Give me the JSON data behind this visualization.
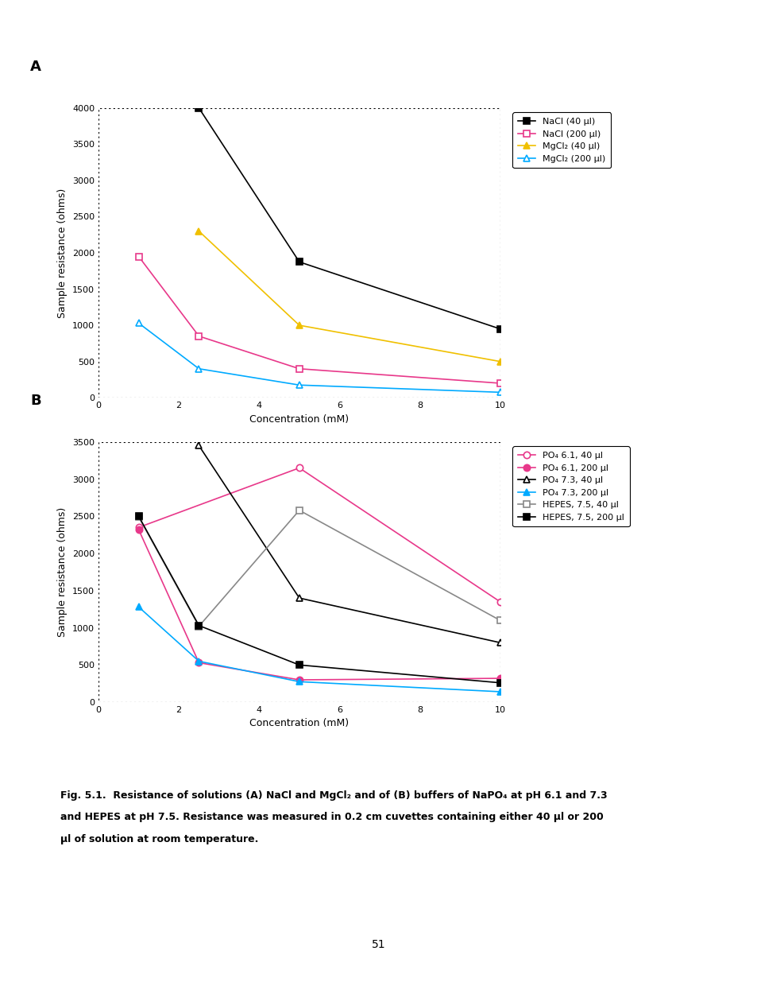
{
  "chart_A": {
    "title": "A",
    "xlabel": "Concentration (mM)",
    "ylabel": "Sample resistance (ohms)",
    "xlim": [
      0,
      10
    ],
    "ylim": [
      0,
      4000
    ],
    "yticks": [
      0,
      500,
      1000,
      1500,
      2000,
      2500,
      3000,
      3500,
      4000
    ],
    "xticks": [
      0,
      2,
      4,
      6,
      8,
      10
    ],
    "series": [
      {
        "label": "NaCl (40 µl)",
        "x": [
          2.5,
          5,
          10
        ],
        "y": [
          4000,
          1875,
          950
        ],
        "color": "#000000",
        "marker": "s",
        "fillstyle": "full",
        "linestyle": "-"
      },
      {
        "label": "NaCl (200 µl)",
        "x": [
          1,
          2.5,
          5,
          10
        ],
        "y": [
          1950,
          850,
          400,
          200
        ],
        "color": "#e8388a",
        "marker": "s",
        "fillstyle": "none",
        "linestyle": "-"
      },
      {
        "label": "MgCl₂ (40 µl)",
        "x": [
          2.5,
          5,
          10
        ],
        "y": [
          2300,
          1000,
          500
        ],
        "color": "#f0c000",
        "marker": "^",
        "fillstyle": "full",
        "linestyle": "-"
      },
      {
        "label": "MgCl₂ (200 µl)",
        "x": [
          1,
          2.5,
          5,
          10
        ],
        "y": [
          1030,
          400,
          175,
          75
        ],
        "color": "#00aaff",
        "marker": "^",
        "fillstyle": "none",
        "linestyle": "-"
      }
    ]
  },
  "chart_B": {
    "title": "B",
    "xlabel": "Concentration (mM)",
    "ylabel": "Sample resistance (ohms)",
    "xlim": [
      0,
      10
    ],
    "ylim": [
      0,
      3500
    ],
    "yticks": [
      0,
      500,
      1000,
      1500,
      2000,
      2500,
      3000,
      3500
    ],
    "xticks": [
      0,
      2,
      4,
      6,
      8,
      10
    ],
    "series": [
      {
        "label": "PO₄ 6.1, 40 µl",
        "x": [
          1,
          5,
          10
        ],
        "y": [
          2350,
          3150,
          1350
        ],
        "color": "#e8388a",
        "marker": "o",
        "fillstyle": "none",
        "linestyle": "-"
      },
      {
        "label": "PO₄ 6.1, 200 µl",
        "x": [
          1,
          2.5,
          5,
          10
        ],
        "y": [
          2320,
          530,
          300,
          320
        ],
        "color": "#e8388a",
        "marker": "o",
        "fillstyle": "full",
        "linestyle": "-"
      },
      {
        "label": "PO₄ 7.3, 40 µl",
        "x": [
          2.5,
          5,
          10
        ],
        "y": [
          3450,
          1400,
          800
        ],
        "color": "#000000",
        "marker": "^",
        "fillstyle": "none",
        "linestyle": "-"
      },
      {
        "label": "PO₄ 7.3, 200 µl",
        "x": [
          1,
          2.5,
          5,
          10
        ],
        "y": [
          1280,
          550,
          275,
          140
        ],
        "color": "#00aaff",
        "marker": "^",
        "fillstyle": "full",
        "linestyle": "-"
      },
      {
        "label": "HEPES, 7.5, 40 µl",
        "x": [
          1,
          2.5,
          5,
          10
        ],
        "y": [
          2490,
          1020,
          2580,
          1100
        ],
        "color": "#888888",
        "marker": "s",
        "fillstyle": "none",
        "linestyle": "-"
      },
      {
        "label": "HEPES, 7.5, 200 µl",
        "x": [
          1,
          2.5,
          5,
          10
        ],
        "y": [
          2500,
          1030,
          500,
          260
        ],
        "color": "#000000",
        "marker": "s",
        "fillstyle": "full",
        "linestyle": "-"
      }
    ]
  },
  "caption_line1": "Fig. 5.1.  Resistance of solutions (A) NaCl and MgCl₂ and of (B) buffers of NaPO₄ at pH 6.1 and 7.3",
  "caption_line2": "and HEPES at pH 7.5. Resistance was measured in 0.2 cm cuvettes containing either 40 µl or 200",
  "caption_line3": "µl of solution at room temperature.",
  "page_number": "51"
}
